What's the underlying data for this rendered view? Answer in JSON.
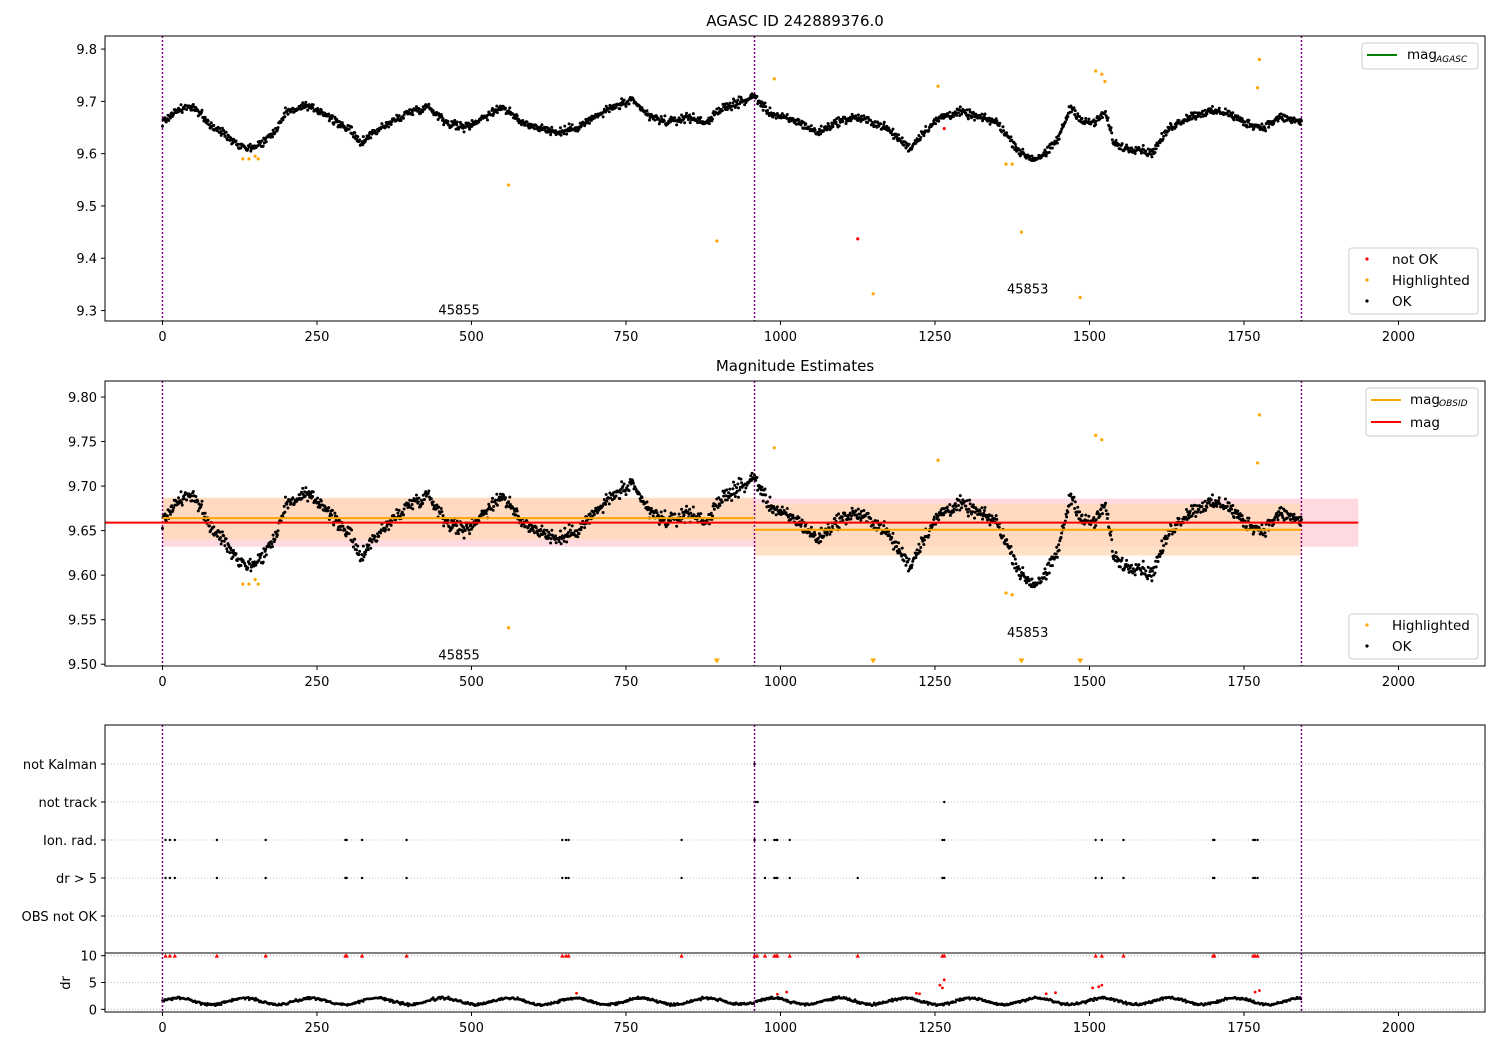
{
  "colors": {
    "ok": "#000000",
    "highlighted": "#ffa500",
    "not_ok": "#ff0000",
    "mag_agasc_line": "#008000",
    "mag_obsid_line": "#ffa500",
    "mag_line": "#ff0000",
    "obsid_divider": "#800080",
    "mag_band": "#ffc0cb",
    "obsid_band": "#ffdab9"
  },
  "chart_data": [
    {
      "type": "scatter",
      "title": "AGASC ID 242889376.0",
      "xlabel": "",
      "ylabel": "",
      "xlim": [
        -93,
        2140
      ],
      "ylim": [
        9.28,
        9.825
      ],
      "xticks": [
        0,
        250,
        500,
        750,
        1000,
        1250,
        1500,
        1750,
        2000
      ],
      "yticks": [
        9.3,
        9.4,
        9.5,
        9.6,
        9.7,
        9.8
      ],
      "grid": false,
      "obsid_boundaries": [
        0,
        958,
        1843
      ],
      "obsid_labels": [
        {
          "text": "45855",
          "x": 480,
          "y": 9.3
        },
        {
          "text": "45853",
          "x": 1400,
          "y": 9.34
        }
      ],
      "legends": [
        {
          "position": "upper-right",
          "entries": [
            {
              "name": "mag",
              "sub": "AGASC",
              "kind": "line",
              "color": "#008000"
            }
          ]
        },
        {
          "position": "lower-right",
          "entries": [
            {
              "name": "not OK",
              "kind": "dot",
              "color": "#ff0000"
            },
            {
              "name": "Highlighted",
              "kind": "dot",
              "color": "#ffa500"
            },
            {
              "name": "OK",
              "kind": "dot",
              "color": "#000000"
            }
          ]
        }
      ],
      "series": [
        {
          "name": "OK",
          "color": "#000000",
          "kind": "trace",
          "x": [
            0,
            20,
            40,
            60,
            80,
            100,
            120,
            140,
            160,
            180,
            200,
            230,
            260,
            280,
            300,
            320,
            340,
            370,
            400,
            430,
            460,
            490,
            520,
            550,
            580,
            610,
            640,
            670,
            700,
            730,
            760,
            790,
            820,
            850,
            880,
            910,
            940,
            958,
            980,
            1000,
            1030,
            1060,
            1090,
            1120,
            1150,
            1170,
            1190,
            1210,
            1230,
            1260,
            1290,
            1320,
            1350,
            1370,
            1390,
            1410,
            1430,
            1450,
            1470,
            1490,
            1510,
            1525,
            1540,
            1560,
            1580,
            1600,
            1630,
            1660,
            1690,
            1720,
            1750,
            1780,
            1810,
            1843
          ],
          "y": [
            9.66,
            9.68,
            9.69,
            9.68,
            9.65,
            9.64,
            9.62,
            9.61,
            9.62,
            9.64,
            9.68,
            9.69,
            9.68,
            9.66,
            9.65,
            9.62,
            9.64,
            9.66,
            9.68,
            9.69,
            9.66,
            9.65,
            9.67,
            9.69,
            9.66,
            9.65,
            9.64,
            9.65,
            9.67,
            9.69,
            9.7,
            9.67,
            9.66,
            9.67,
            9.66,
            9.69,
            9.7,
            9.71,
            9.68,
            9.67,
            9.66,
            9.64,
            9.66,
            9.67,
            9.66,
            9.65,
            9.63,
            9.61,
            9.64,
            9.67,
            9.68,
            9.67,
            9.66,
            9.63,
            9.6,
            9.59,
            9.6,
            9.63,
            9.69,
            9.66,
            9.66,
            9.68,
            9.62,
            9.61,
            9.61,
            9.6,
            9.65,
            9.67,
            9.68,
            9.68,
            9.66,
            9.65,
            9.67,
            9.66
          ],
          "scatter": 0.012
        },
        {
          "name": "Highlighted",
          "color": "#ffa500",
          "kind": "points",
          "x": [
            130,
            140,
            150,
            155,
            560,
            897,
            990,
            1150,
            1255,
            1365,
            1375,
            1390,
            1485,
            1510,
            1520,
            1525,
            1772,
            1775
          ],
          "y": [
            9.59,
            9.59,
            9.595,
            9.59,
            9.54,
            9.433,
            9.743,
            9.332,
            9.729,
            9.58,
            9.58,
            9.45,
            9.325,
            9.758,
            9.752,
            9.738,
            9.726,
            9.78
          ]
        },
        {
          "name": "not OK",
          "color": "#ff0000",
          "kind": "points",
          "x": [
            1125,
            1265
          ],
          "y": [
            9.437,
            9.648
          ]
        }
      ]
    },
    {
      "type": "scatter",
      "title": "Magnitude Estimates",
      "xlabel": "",
      "ylabel": "",
      "xlim": [
        -93,
        2140
      ],
      "ylim": [
        9.498,
        9.818
      ],
      "xticks": [
        0,
        250,
        500,
        750,
        1000,
        1250,
        1500,
        1750,
        2000
      ],
      "yticks": [
        9.5,
        9.55,
        9.6,
        9.65,
        9.7,
        9.75,
        9.8
      ],
      "grid": false,
      "obsid_boundaries": [
        0,
        958,
        1843
      ],
      "obsid_labels": [
        {
          "text": "45855",
          "x": 480,
          "y": 9.51
        },
        {
          "text": "45853",
          "x": 1400,
          "y": 9.535
        }
      ],
      "mag": {
        "value": 9.659,
        "band": [
          9.632,
          9.686
        ],
        "x_range": [
          0,
          1935
        ]
      },
      "mag_obsid": [
        {
          "x_range": [
            0,
            958
          ],
          "value": 9.664,
          "band": [
            9.64,
            9.687
          ]
        },
        {
          "x_range": [
            958,
            1843
          ],
          "value": 9.651,
          "band": [
            9.622,
            9.68
          ]
        }
      ],
      "legends": [
        {
          "position": "upper-right",
          "entries": [
            {
              "name": "mag",
              "sub": "OBSID",
              "kind": "line",
              "color": "#ffa500"
            },
            {
              "name": "mag",
              "kind": "line",
              "color": "#ff0000"
            }
          ]
        },
        {
          "position": "lower-right",
          "entries": [
            {
              "name": "Highlighted",
              "kind": "dot",
              "color": "#ffa500"
            },
            {
              "name": "OK",
              "kind": "dot",
              "color": "#000000"
            }
          ]
        }
      ],
      "series": [
        {
          "name": "Highlighted",
          "color": "#ffa500",
          "kind": "points",
          "x": [
            130,
            140,
            150,
            155,
            560,
            990,
            1255,
            1365,
            1375,
            1510,
            1520,
            1772,
            1775
          ],
          "y": [
            9.59,
            9.59,
            9.595,
            9.59,
            9.541,
            9.743,
            9.729,
            9.58,
            9.578,
            9.757,
            9.752,
            9.726,
            9.78
          ]
        },
        {
          "name": "Highlighted (clipped)",
          "color": "#ffa500",
          "kind": "triangles",
          "x": [
            897,
            1150,
            1390,
            1485
          ],
          "y": [
            9.502,
            9.502,
            9.502,
            9.502
          ]
        }
      ]
    },
    {
      "type": "scatter",
      "title": "",
      "xlabel": "",
      "ylabel": "dr",
      "xlim": [
        -93,
        2140
      ],
      "ylim": [
        -0.5,
        10.5
      ],
      "xticks": [
        0,
        250,
        500,
        750,
        1000,
        1250,
        1500,
        1750,
        2000
      ],
      "yticks": [
        0,
        5,
        10
      ],
      "flag_rows": [
        "not Kalman",
        "not track",
        "Ion. rad.",
        "dr > 5",
        "OBS not OK"
      ],
      "flags": {
        "not Kalman": [
          958
        ],
        "not track": [
          958,
          960,
          963,
          1265
        ],
        "Ion. rad.": [
          5,
          12,
          20,
          88,
          167,
          296,
          298,
          323,
          395,
          647,
          653,
          657,
          840,
          958,
          975,
          990,
          993,
          995,
          1015,
          1262,
          1265,
          1510,
          1520,
          1555,
          1700,
          1702,
          1765,
          1768,
          1772
        ],
        "dr > 5": [
          5,
          12,
          20,
          88,
          167,
          296,
          298,
          323,
          395,
          647,
          653,
          657,
          840,
          958,
          975,
          990,
          993,
          995,
          1015,
          1125,
          1262,
          1265,
          1510,
          1520,
          1555,
          1700,
          1702,
          1765,
          1768,
          1772
        ],
        "OBS not OK": []
      },
      "obsid_boundaries": [
        0,
        958,
        1843
      ],
      "dr_series": {
        "color": "#000000",
        "x_range": [
          0,
          1843
        ],
        "baseline": 1.5
      },
      "dr_red_x": [
        1220,
        1225,
        1258,
        1262,
        1265,
        1430,
        1445,
        1505,
        1515,
        1520,
        1768,
        1775,
        995,
        1010,
        670
      ],
      "dr_red_y": [
        3.0,
        2.9,
        4.5,
        4.0,
        5.5,
        2.9,
        3.1,
        4.0,
        4.2,
        4.5,
        3.2,
        3.5,
        2.8,
        3.2,
        3.0
      ],
      "dr_clipped_x": [
        5,
        12,
        20,
        88,
        167,
        296,
        298,
        323,
        395,
        647,
        653,
        657,
        840,
        958,
        962,
        975,
        990,
        993,
        995,
        1015,
        1125,
        1262,
        1265,
        1510,
        1520,
        1555,
        1700,
        1702,
        1765,
        1768,
        1772
      ]
    }
  ]
}
